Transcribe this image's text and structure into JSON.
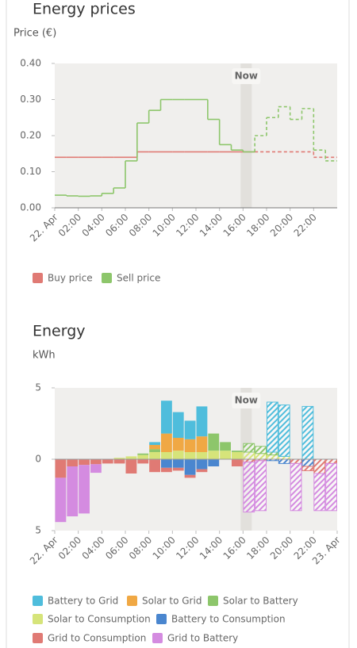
{
  "chart_data": [
    {
      "type": "line",
      "title": "Energy prices",
      "y_label": "Price (€)",
      "x": [
        0,
        1,
        2,
        3,
        4,
        5,
        6,
        7,
        8,
        9,
        10,
        11,
        12,
        13,
        14,
        15,
        16,
        17,
        18,
        19,
        20,
        21,
        22,
        23
      ],
      "xlim": [
        0,
        24
      ],
      "xticks": [
        {
          "value": 0,
          "label": "22. Apr"
        },
        {
          "value": 2,
          "label": "02:00"
        },
        {
          "value": 4,
          "label": "04:00"
        },
        {
          "value": 6,
          "label": "06:00"
        },
        {
          "value": 8,
          "label": "08:00"
        },
        {
          "value": 10,
          "label": "10:00"
        },
        {
          "value": 12,
          "label": "12:00"
        },
        {
          "value": 14,
          "label": "14:00"
        },
        {
          "value": 16,
          "label": "16:00"
        },
        {
          "value": 18,
          "label": "18:00"
        },
        {
          "value": 20,
          "label": "20:00"
        },
        {
          "value": 22,
          "label": "22:00"
        }
      ],
      "ylim": [
        0,
        0.4
      ],
      "yticks": [
        {
          "value": 0,
          "label": "0.00"
        },
        {
          "value": 0.1,
          "label": "0.10"
        },
        {
          "value": 0.2,
          "label": "0.20"
        },
        {
          "value": 0.3,
          "label": "0.30"
        },
        {
          "value": 0.4,
          "label": "0.40"
        }
      ],
      "now": {
        "label": "Now",
        "x": 16
      },
      "series": [
        {
          "name": "Buy price",
          "color": "#e07a74",
          "values": [
            0.14,
            0.14,
            0.14,
            0.14,
            0.14,
            0.14,
            0.14,
            0.155,
            0.155,
            0.155,
            0.155,
            0.155,
            0.155,
            0.155,
            0.155,
            0.155,
            0.155,
            0.155,
            0.155,
            0.155,
            0.155,
            0.155,
            0.14,
            0.14
          ]
        },
        {
          "name": "Sell price",
          "color": "#8dc66b",
          "values": [
            0.035,
            0.033,
            0.032,
            0.033,
            0.04,
            0.055,
            0.13,
            0.235,
            0.27,
            0.3,
            0.3,
            0.3,
            0.3,
            0.245,
            0.175,
            0.16,
            0.155,
            0.2,
            0.25,
            0.28,
            0.245,
            0.275,
            0.16,
            0.13
          ]
        }
      ]
    },
    {
      "type": "bar",
      "title": "Energy",
      "y_label": "kWh",
      "x": [
        0,
        1,
        2,
        3,
        4,
        5,
        6,
        7,
        8,
        9,
        10,
        11,
        12,
        13,
        14,
        15,
        16,
        17,
        18,
        19,
        20,
        21,
        22,
        23
      ],
      "xlim": [
        0,
        24
      ],
      "xticks": [
        {
          "value": 0,
          "label": "22. Apr"
        },
        {
          "value": 2,
          "label": "02:00"
        },
        {
          "value": 4,
          "label": "04:00"
        },
        {
          "value": 6,
          "label": "06:00"
        },
        {
          "value": 8,
          "label": "08:00"
        },
        {
          "value": 10,
          "label": "10:00"
        },
        {
          "value": 12,
          "label": "12:00"
        },
        {
          "value": 14,
          "label": "14:00"
        },
        {
          "value": 16,
          "label": "16:00"
        },
        {
          "value": 18,
          "label": "18:00"
        },
        {
          "value": 20,
          "label": "20:00"
        },
        {
          "value": 22,
          "label": "22:00"
        },
        {
          "value": 24,
          "label": "23. Apr"
        }
      ],
      "ylim": [
        -5,
        5
      ],
      "yticks": [
        {
          "value": -5,
          "label": "5"
        },
        0,
        5
      ],
      "now": {
        "label": "Now",
        "x": 16
      },
      "series": [
        {
          "name": "Battery to Grid",
          "color": "#4fbddc",
          "values": [
            0,
            0,
            0,
            0,
            0,
            0,
            0,
            0,
            0.2,
            2.3,
            1.8,
            1.3,
            2.1,
            0,
            0,
            0,
            0,
            0,
            3.5,
            3.6,
            0,
            3.7,
            0,
            0
          ]
        },
        {
          "name": "Solar to Grid",
          "color": "#f0a844",
          "values": [
            0,
            0,
            0,
            0,
            0,
            0,
            0,
            0,
            0.3,
            1.3,
            0.9,
            0.9,
            1.1,
            0,
            0,
            0,
            0,
            0,
            0,
            0,
            0,
            0,
            0,
            0
          ]
        },
        {
          "name": "Solar to Battery",
          "color": "#8dc66b",
          "values": [
            0,
            0,
            0,
            0,
            0,
            0,
            0,
            0.1,
            0.2,
            0,
            0,
            0,
            0,
            1.2,
            0.6,
            0.1,
            0.6,
            0.5,
            0.2,
            0,
            0,
            0,
            0,
            0
          ]
        },
        {
          "name": "Solar to Consumption",
          "color": "#d6e47a",
          "values": [
            0,
            0,
            0,
            0,
            0,
            0.1,
            0.2,
            0.3,
            0.5,
            0.5,
            0.6,
            0.5,
            0.5,
            0.6,
            0.6,
            0.5,
            0.5,
            0.4,
            0.3,
            0.2,
            0,
            0,
            0,
            0
          ]
        },
        {
          "name": "Battery to Consumption",
          "color": "#4a86cf",
          "values": [
            0,
            0,
            0,
            0,
            0,
            0,
            0,
            0,
            0,
            -0.6,
            -0.6,
            -1.1,
            -0.7,
            -0.5,
            0,
            0,
            0,
            0,
            -0.1,
            -0.3,
            0,
            -0.5,
            0,
            0
          ]
        },
        {
          "name": "Grid to Consumption",
          "color": "#e07a74",
          "values": [
            -1.3,
            -0.5,
            -0.4,
            -0.35,
            -0.3,
            -0.3,
            -1.0,
            -0.3,
            -0.9,
            -0.3,
            -0.2,
            -0.2,
            -0.2,
            0,
            0,
            -0.5,
            -0.2,
            -0.1,
            0,
            0,
            -0.3,
            -0.3,
            -1.0,
            -0.3
          ]
        },
        {
          "name": "Grid to Battery",
          "color": "#d48be0",
          "values": [
            -3.1,
            -3.5,
            -3.4,
            -0.6,
            0,
            0,
            0,
            0,
            0,
            0,
            0,
            0,
            0,
            0,
            0,
            0,
            -3.5,
            -3.5,
            0,
            0,
            -3.3,
            0,
            -2.6,
            -3.3
          ]
        }
      ]
    }
  ]
}
